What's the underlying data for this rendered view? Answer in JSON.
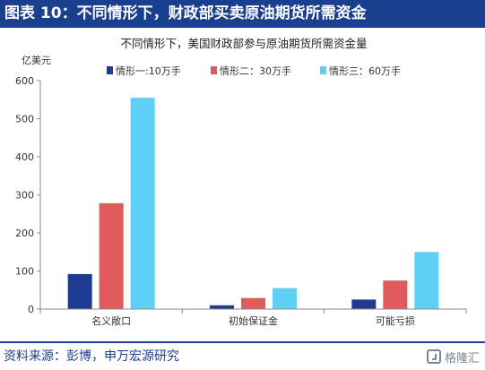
{
  "header": {
    "title": "图表 10：不同情形下，财政部买卖原油期货所需资金"
  },
  "footer": {
    "source": "资料来源：彭博，申万宏源研究",
    "watermark": "格隆汇"
  },
  "chart_data": {
    "type": "bar",
    "title": "不同情形下，美国财政部参与原油期货所需资金量",
    "ylabel": "亿美元",
    "xlabel": "",
    "ylim": [
      0,
      600
    ],
    "yticks": [
      "0",
      "100",
      "200",
      "300",
      "400",
      "500",
      "600"
    ],
    "categories": [
      "名义敞口",
      "初始保证金",
      "可能亏损"
    ],
    "series": [
      {
        "name": "情形一:10万手",
        "values": [
          92,
          10,
          25
        ],
        "color": "#1f3a93"
      },
      {
        "name": "情形二：30万手",
        "values": [
          278,
          29,
          75
        ],
        "color": "#e05a5a"
      },
      {
        "name": "情形三：60万手",
        "values": [
          555,
          55,
          150
        ],
        "color": "#5fd0f5"
      }
    ],
    "grid": false,
    "legend_position": "top"
  }
}
